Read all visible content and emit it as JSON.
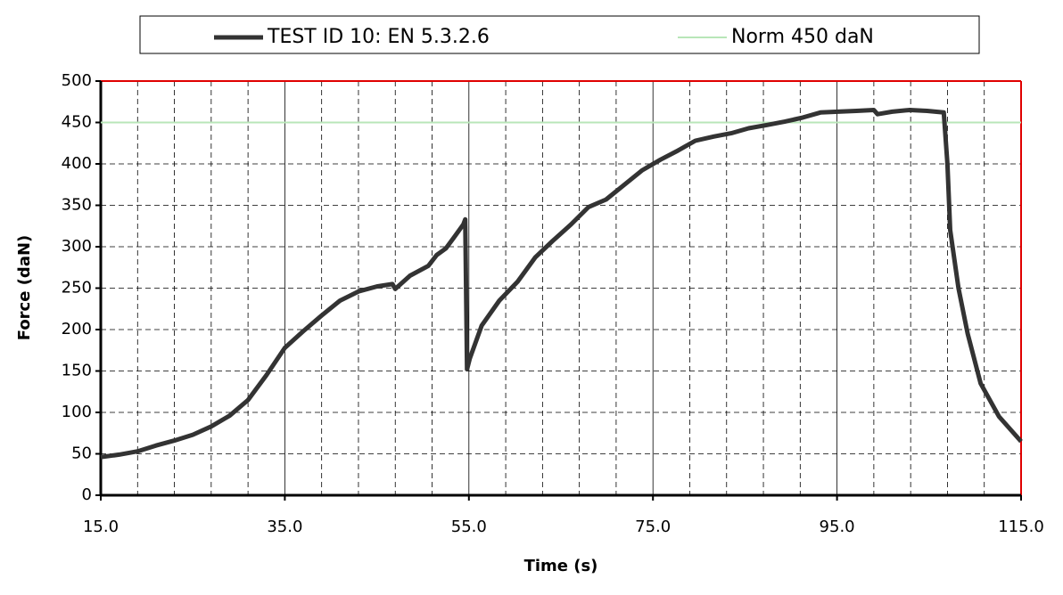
{
  "chart_data": {
    "type": "line",
    "x_label": "Time (s)",
    "y_label": "Force (daN)",
    "xlim": [
      15,
      115
    ],
    "ylim": [
      0,
      500
    ],
    "xticks": [
      {
        "value": 15,
        "label": "15.0"
      },
      {
        "value": 35,
        "label": "35.0"
      },
      {
        "value": 55,
        "label": "55.0"
      },
      {
        "value": 75,
        "label": "75.0"
      },
      {
        "value": 95,
        "label": "95.0"
      },
      {
        "value": 115,
        "label": "115.0"
      }
    ],
    "x_minor_ticks": [
      19,
      23,
      27,
      31,
      39,
      43,
      47,
      51,
      59,
      63,
      67,
      71,
      79,
      83,
      87,
      91,
      99,
      103,
      107,
      111
    ],
    "yticks": [
      0,
      50,
      100,
      150,
      200,
      250,
      300,
      350,
      400,
      450,
      500
    ],
    "grid": true,
    "legend": "top",
    "series": [
      {
        "name": "TEST ID 10: EN 5.3.2.6",
        "color": "#333333",
        "x": [
          15,
          17,
          19,
          21,
          23,
          25,
          27,
          29,
          31,
          33,
          35,
          37,
          39,
          41,
          43,
          45,
          46.7,
          47,
          48.6,
          50.6,
          51.5,
          52.5,
          53.5,
          54.4,
          54.6,
          54.8,
          55.1,
          56.4,
          58.3,
          60.3,
          62.2,
          64.1,
          66.1,
          68,
          69.9,
          71.9,
          73.8,
          75.8,
          77.7,
          79.6,
          81.6,
          83.5,
          85.4,
          87.4,
          89.3,
          91.3,
          93.2,
          95.1,
          97.1,
          99,
          99.4,
          101,
          102.9,
          104.8,
          106.6,
          107,
          107.3,
          108.2,
          109.2,
          110.6,
          112.6,
          115
        ],
        "values": [
          46,
          49,
          53,
          60,
          66,
          73,
          83,
          96,
          115,
          145,
          178,
          198,
          217,
          235,
          246,
          252,
          255,
          249,
          265,
          277,
          290,
          298,
          313,
          327,
          333,
          152,
          165,
          205,
          235,
          258,
          287,
          307,
          327,
          348,
          357,
          375,
          392,
          405,
          416,
          428,
          433,
          437,
          443,
          447,
          451,
          456,
          462,
          463,
          464,
          465,
          460,
          463,
          465,
          464,
          462,
          400,
          320,
          250,
          195,
          135,
          95,
          65
        ]
      },
      {
        "name": "Norm 450 daN",
        "color": "#b8e6b8",
        "x": [
          15,
          115
        ],
        "values": [
          450,
          450
        ]
      }
    ]
  }
}
